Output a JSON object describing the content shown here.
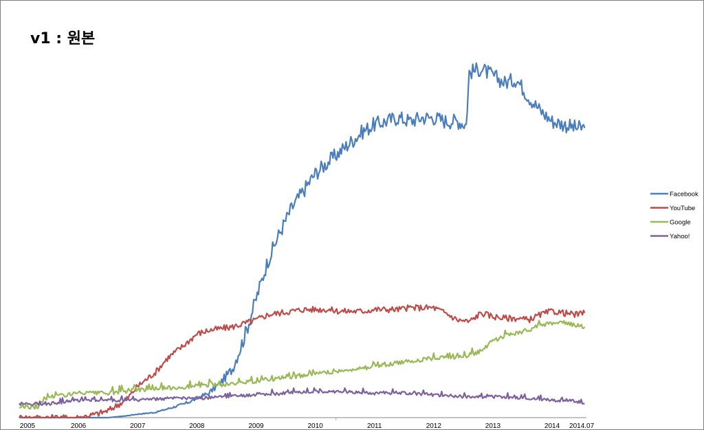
{
  "title": "v1 : 원본",
  "chart_data": {
    "type": "line",
    "title": "v1 : 원본",
    "xlabel": "",
    "ylabel": "",
    "x_ticks": [
      "2005",
      "2006",
      "2007",
      "2008",
      "2009",
      "2010",
      "2011",
      "2012",
      "2013",
      "2014",
      "2014.07"
    ],
    "xlim": [
      2005.0,
      2014.58
    ],
    "ylim": [
      0,
      100
    ],
    "grid": false,
    "legend_position": "right",
    "series": [
      {
        "name": "Facebook",
        "color": "#4a7ebb",
        "x": [
          2005.0,
          2005.5,
          2006.0,
          2006.3,
          2006.5,
          2006.8,
          2007.0,
          2007.3,
          2007.5,
          2007.8,
          2008.0,
          2008.2,
          2008.4,
          2008.6,
          2008.8,
          2009.0,
          2009.2,
          2009.4,
          2009.6,
          2009.8,
          2010.0,
          2010.2,
          2010.4,
          2010.6,
          2010.8,
          2011.0,
          2011.2,
          2011.4,
          2011.6,
          2011.8,
          2012.0,
          2012.2,
          2012.4,
          2012.55,
          2012.6,
          2012.8,
          2013.0,
          2013.2,
          2013.4,
          2013.6,
          2013.8,
          2014.0,
          2014.2,
          2014.4,
          2014.55
        ],
        "values": [
          0,
          0,
          0,
          0,
          0,
          0.5,
          1,
          1.5,
          2.5,
          4,
          5.5,
          7,
          10,
          14,
          23,
          34,
          45,
          53,
          60,
          65,
          70,
          73,
          76,
          79,
          82,
          84,
          85,
          86,
          85,
          86,
          86,
          85,
          85,
          84,
          99,
          100,
          98,
          96,
          97,
          92,
          88,
          85,
          84,
          83,
          83
        ]
      },
      {
        "name": "YouTube",
        "color": "#be4b48",
        "x": [
          2005.0,
          2005.5,
          2006.0,
          2006.3,
          2006.5,
          2006.8,
          2007.0,
          2007.3,
          2007.5,
          2007.8,
          2008.0,
          2008.2,
          2008.4,
          2008.6,
          2008.8,
          2009.0,
          2009.2,
          2009.4,
          2009.6,
          2009.8,
          2010.0,
          2010.2,
          2010.4,
          2010.6,
          2010.8,
          2011.0,
          2011.2,
          2011.4,
          2011.6,
          2011.8,
          2012.0,
          2012.2,
          2012.4,
          2012.6,
          2012.8,
          2013.0,
          2013.2,
          2013.4,
          2013.6,
          2013.8,
          2014.0,
          2014.2,
          2014.4,
          2014.55
        ],
        "values": [
          0,
          0,
          0,
          1,
          2,
          5,
          9,
          13,
          17,
          21,
          24,
          25,
          25.5,
          26,
          27,
          28,
          29.5,
          30,
          30.5,
          31,
          31,
          31,
          30.5,
          30.5,
          30.5,
          31,
          31,
          31,
          31.5,
          31.5,
          31.5,
          30,
          28,
          27.5,
          30,
          29,
          28.5,
          28.5,
          28,
          29.5,
          30.5,
          30,
          29.5,
          30
        ]
      },
      {
        "name": "Google",
        "color": "#98b954",
        "x": [
          2005.0,
          2005.3,
          2005.5,
          2006.0,
          2006.5,
          2007.0,
          2007.5,
          2008.0,
          2008.5,
          2009.0,
          2009.5,
          2010.0,
          2010.5,
          2011.0,
          2011.5,
          2012.0,
          2012.5,
          2012.8,
          2013.0,
          2013.3,
          2013.6,
          2013.8,
          2014.0,
          2014.2,
          2014.4,
          2014.55
        ],
        "values": [
          3,
          3,
          6,
          7,
          7,
          8,
          8.5,
          9,
          9.5,
          10.5,
          11.5,
          12.5,
          13.5,
          14.5,
          16,
          17,
          17.5,
          19,
          22,
          24,
          25,
          26.5,
          27,
          27,
          26.5,
          26
        ]
      },
      {
        "name": "Yahoo!",
        "color": "#7d60a0",
        "x": [
          2005.0,
          2005.5,
          2006.0,
          2006.5,
          2007.0,
          2007.5,
          2008.0,
          2008.5,
          2009.0,
          2009.5,
          2010.0,
          2010.5,
          2011.0,
          2011.5,
          2012.0,
          2012.5,
          2013.0,
          2013.5,
          2014.0,
          2014.3,
          2014.55
        ],
        "values": [
          4,
          4,
          5,
          5,
          5,
          5.5,
          5.5,
          6,
          6.5,
          7,
          7.5,
          7.5,
          7,
          7,
          6.5,
          6,
          6,
          5.5,
          5,
          5,
          4
        ]
      }
    ]
  }
}
